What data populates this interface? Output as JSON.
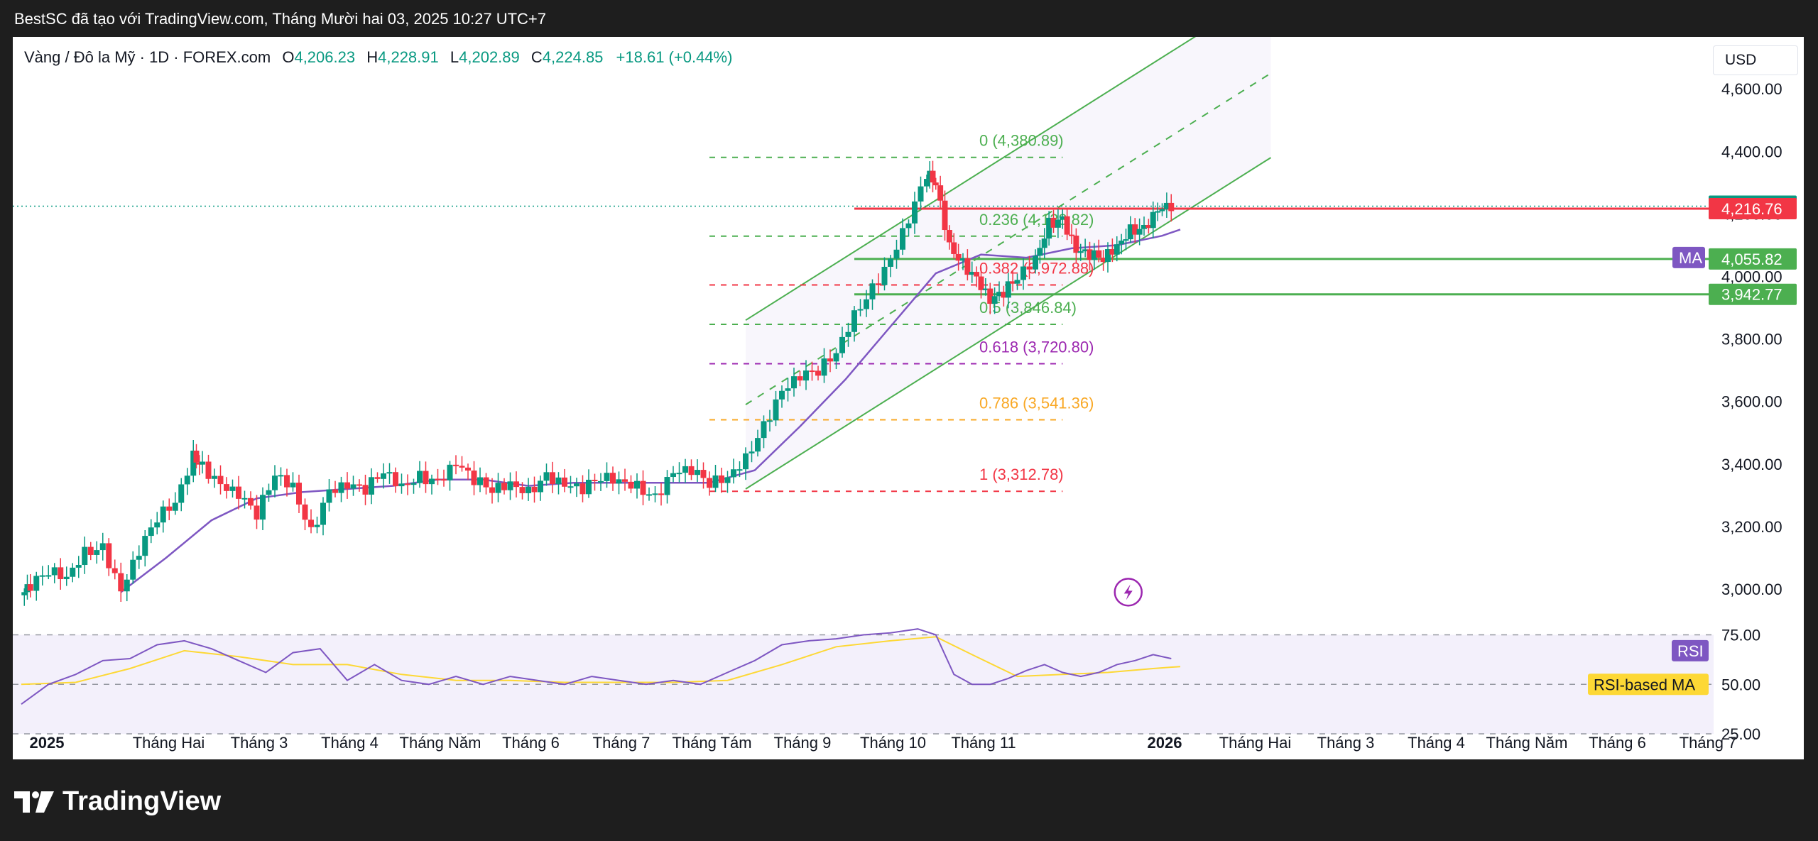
{
  "header": {
    "title": "BestSC đã tạo với TradingView.com, Tháng Mười hai 03, 2025 10:27 UTC+7"
  },
  "legend": {
    "symbol": "Vàng / Đô la Mỹ · 1D · FOREX.com",
    "o_label": "O",
    "o_value": "4,206.23",
    "h_label": "H",
    "h_value": "4,228.91",
    "l_label": "L",
    "l_value": "4,202.89",
    "c_label": "C",
    "c_value": "4,224.85",
    "change": "+18.61 (+0.44%)"
  },
  "currency": "USD",
  "footer": {
    "brand": "TradingView"
  },
  "colors": {
    "up": "#089981",
    "down": "#f23645",
    "ma": "#7e57c2",
    "rsi_ma": "#fdd835",
    "channel": "#4caf50"
  },
  "chart_data": {
    "type": "candlestick",
    "price_axis": {
      "range": [
        2900,
        4680
      ],
      "ticks": [
        "4,600.00",
        "4,400.00",
        "4,200.00",
        "4,000.00",
        "3,800.00",
        "3,600.00",
        "3,400.00",
        "3,200.00",
        "3,000.00"
      ],
      "tick_values": [
        4600,
        4400,
        4200,
        4000,
        3800,
        3600,
        3400,
        3200,
        3000
      ]
    },
    "time_axis": {
      "labels": [
        "2025",
        "Tháng Hai",
        "Tháng 3",
        "Tháng 4",
        "Tháng Năm",
        "Tháng 6",
        "Tháng 7",
        "Tháng Tám",
        "Tháng 9",
        "Tháng 10",
        "Tháng 11",
        "2026",
        "Tháng Hai",
        "Tháng 3",
        "Tháng 4",
        "Tháng Năm",
        "Tháng 6",
        "Tháng 7"
      ],
      "month_index": [
        0,
        1,
        2,
        3,
        4,
        5,
        6,
        7,
        8,
        9,
        10,
        12,
        13,
        14,
        15,
        16,
        17,
        18
      ],
      "bold": [
        true,
        false,
        false,
        false,
        false,
        false,
        false,
        false,
        false,
        false,
        false,
        true,
        false,
        false,
        false,
        false,
        false,
        false
      ]
    },
    "price_tags": [
      {
        "value": 4224.85,
        "text": "4,224.85",
        "color": "#089981"
      },
      {
        "value": 4216.76,
        "text": "4,216.76",
        "color": "#f23645"
      },
      {
        "value": 4055.82,
        "text": "4,055.82",
        "color": "#4caf50"
      },
      {
        "value": 3942.77,
        "text": "3,942.77",
        "color": "#4caf50"
      }
    ],
    "ma_tag": "MA",
    "fib_levels": [
      {
        "value": 4380.89,
        "text": "0 (4,380.89)",
        "color": "#4caf50"
      },
      {
        "value": 4128.82,
        "text": "0.236 (4,128.82)",
        "color": "#4caf50"
      },
      {
        "value": 3972.88,
        "text": "0.382 (3,972.88)",
        "color": "#f23645"
      },
      {
        "value": 3846.84,
        "text": "0.5 (3,846.84)",
        "color": "#4caf50"
      },
      {
        "value": 3720.8,
        "text": "0.618 (3,720.80)",
        "color": "#9c27b0"
      },
      {
        "value": 3541.36,
        "text": "0.786 (3,541.36)",
        "color": "#f9a825"
      },
      {
        "value": 3312.78,
        "text": "1 (3,312.78)",
        "color": "#f23645"
      }
    ],
    "horizontal_lines": [
      {
        "value": 4216.76,
        "color": "#f23645"
      },
      {
        "value": 4055.82,
        "color": "#4caf50"
      },
      {
        "value": 3942.77,
        "color": "#4caf50"
      }
    ],
    "close_path": [
      [
        0.0,
        2980
      ],
      [
        0.1,
        3010
      ],
      [
        0.3,
        3060
      ],
      [
        0.5,
        3040
      ],
      [
        0.7,
        3120
      ],
      [
        0.9,
        3130
      ],
      [
        1.1,
        2990
      ],
      [
        1.3,
        3120
      ],
      [
        1.5,
        3230
      ],
      [
        1.7,
        3280
      ],
      [
        1.9,
        3430
      ],
      [
        2.0,
        3390
      ],
      [
        2.2,
        3330
      ],
      [
        2.4,
        3300
      ],
      [
        2.6,
        3240
      ],
      [
        2.8,
        3370
      ],
      [
        3.0,
        3330
      ],
      [
        3.2,
        3180
      ],
      [
        3.4,
        3310
      ],
      [
        3.6,
        3330
      ],
      [
        3.8,
        3320
      ],
      [
        4.0,
        3380
      ],
      [
        4.2,
        3330
      ],
      [
        4.4,
        3360
      ],
      [
        4.6,
        3340
      ],
      [
        4.8,
        3400
      ],
      [
        5.0,
        3350
      ],
      [
        5.2,
        3320
      ],
      [
        5.4,
        3340
      ],
      [
        5.6,
        3310
      ],
      [
        5.8,
        3360
      ],
      [
        6.0,
        3330
      ],
      [
        6.2,
        3320
      ],
      [
        6.4,
        3360
      ],
      [
        6.6,
        3350
      ],
      [
        6.8,
        3330
      ],
      [
        7.0,
        3290
      ],
      [
        7.2,
        3370
      ],
      [
        7.4,
        3380
      ],
      [
        7.6,
        3340
      ],
      [
        7.8,
        3360
      ],
      [
        8.0,
        3420
      ],
      [
        8.2,
        3520
      ],
      [
        8.4,
        3630
      ],
      [
        8.6,
        3680
      ],
      [
        8.8,
        3700
      ],
      [
        9.0,
        3760
      ],
      [
        9.2,
        3880
      ],
      [
        9.4,
        3960
      ],
      [
        9.6,
        4050
      ],
      [
        9.8,
        4180
      ],
      [
        10.0,
        4330
      ],
      [
        10.1,
        4300
      ],
      [
        10.25,
        4100
      ],
      [
        10.4,
        4040
      ],
      [
        10.55,
        3990
      ],
      [
        10.7,
        3920
      ],
      [
        10.85,
        3950
      ],
      [
        11.0,
        4000
      ],
      [
        11.2,
        4060
      ],
      [
        11.35,
        4170
      ],
      [
        11.5,
        4180
      ],
      [
        11.65,
        4080
      ],
      [
        11.8,
        4070
      ],
      [
        11.95,
        4060
      ],
      [
        12.1,
        4100
      ],
      [
        12.25,
        4150
      ],
      [
        12.4,
        4150
      ],
      [
        12.55,
        4210
      ],
      [
        12.7,
        4224.85
      ]
    ],
    "ma_line": [
      [
        1.1,
        2990
      ],
      [
        1.6,
        3100
      ],
      [
        2.1,
        3220
      ],
      [
        2.6,
        3290
      ],
      [
        3.1,
        3310
      ],
      [
        3.6,
        3320
      ],
      [
        4.1,
        3330
      ],
      [
        4.6,
        3350
      ],
      [
        5.1,
        3350
      ],
      [
        5.6,
        3330
      ],
      [
        6.1,
        3340
      ],
      [
        6.6,
        3340
      ],
      [
        7.1,
        3340
      ],
      [
        7.6,
        3340
      ],
      [
        8.1,
        3380
      ],
      [
        8.6,
        3520
      ],
      [
        9.1,
        3670
      ],
      [
        9.6,
        3840
      ],
      [
        10.1,
        4010
      ],
      [
        10.6,
        4070
      ],
      [
        11.1,
        4060
      ],
      [
        11.6,
        4090
      ],
      [
        12.1,
        4100
      ],
      [
        12.6,
        4130
      ],
      [
        12.8,
        4150
      ]
    ],
    "channel": {
      "base_start": [
        8.0,
        3320
      ],
      "base_end": [
        13.8,
        4380
      ],
      "mid_start": [
        8.0,
        3590
      ],
      "mid_end": [
        13.8,
        4650
      ],
      "top_start": [
        8.0,
        3860
      ],
      "top_end": [
        13.8,
        4920
      ]
    },
    "rsi": {
      "label": "RSI",
      "ma_label": "RSI-based MA",
      "ticks": [
        "75.00",
        "50.00",
        "25.00"
      ],
      "tick_values": [
        75,
        50,
        25
      ],
      "range": [
        20,
        82
      ],
      "values": [
        [
          0.0,
          40
        ],
        [
          0.3,
          50
        ],
        [
          0.6,
          55
        ],
        [
          0.9,
          62
        ],
        [
          1.2,
          63
        ],
        [
          1.5,
          70
        ],
        [
          1.8,
          72
        ],
        [
          2.1,
          68
        ],
        [
          2.4,
          62
        ],
        [
          2.7,
          56
        ],
        [
          3.0,
          66
        ],
        [
          3.3,
          68
        ],
        [
          3.6,
          52
        ],
        [
          3.9,
          60
        ],
        [
          4.2,
          52
        ],
        [
          4.5,
          50
        ],
        [
          4.8,
          54
        ],
        [
          5.1,
          50
        ],
        [
          5.4,
          54
        ],
        [
          5.7,
          52
        ],
        [
          6.0,
          50
        ],
        [
          6.3,
          54
        ],
        [
          6.6,
          52
        ],
        [
          6.9,
          50
        ],
        [
          7.2,
          52
        ],
        [
          7.5,
          50
        ],
        [
          7.8,
          56
        ],
        [
          8.1,
          62
        ],
        [
          8.4,
          70
        ],
        [
          8.7,
          72
        ],
        [
          9.0,
          73
        ],
        [
          9.3,
          75
        ],
        [
          9.6,
          76
        ],
        [
          9.9,
          78
        ],
        [
          10.1,
          75
        ],
        [
          10.3,
          55
        ],
        [
          10.5,
          50
        ],
        [
          10.7,
          50
        ],
        [
          10.9,
          53
        ],
        [
          11.1,
          57
        ],
        [
          11.3,
          60
        ],
        [
          11.5,
          56
        ],
        [
          11.7,
          54
        ],
        [
          11.9,
          56
        ],
        [
          12.1,
          60
        ],
        [
          12.3,
          62
        ],
        [
          12.5,
          65
        ],
        [
          12.7,
          63
        ]
      ],
      "ma_values": [
        [
          0.0,
          50
        ],
        [
          0.6,
          51
        ],
        [
          1.2,
          58
        ],
        [
          1.8,
          67
        ],
        [
          2.4,
          64
        ],
        [
          3.0,
          60
        ],
        [
          3.6,
          60
        ],
        [
          4.2,
          55
        ],
        [
          4.8,
          52
        ],
        [
          5.4,
          52
        ],
        [
          6.0,
          51
        ],
        [
          6.6,
          51
        ],
        [
          7.2,
          51
        ],
        [
          7.8,
          52
        ],
        [
          8.4,
          60
        ],
        [
          9.0,
          69
        ],
        [
          9.6,
          72
        ],
        [
          10.1,
          74
        ],
        [
          10.5,
          65
        ],
        [
          11.0,
          54
        ],
        [
          11.5,
          55
        ],
        [
          12.0,
          56
        ],
        [
          12.5,
          58
        ],
        [
          12.8,
          59
        ]
      ]
    }
  }
}
